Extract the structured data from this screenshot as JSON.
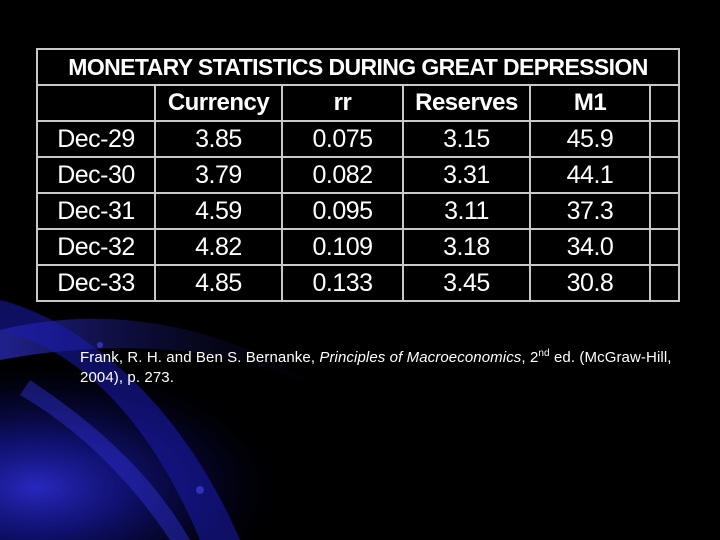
{
  "theme": {
    "background": "#000000",
    "accent": "#1a1aa8",
    "text": "#ffffff",
    "grid": "#c8c8c8"
  },
  "table": {
    "title": "MONETARY STATISTICS DURING GREAT DEPRESSION",
    "columns": [
      "",
      "Currency",
      "rr",
      "Reserves",
      "M1",
      ""
    ],
    "rows": [
      [
        "Dec-29",
        "3.85",
        "0.075",
        "3.15",
        "45.9",
        ""
      ],
      [
        "Dec-30",
        "3.79",
        "0.082",
        "3.31",
        "44.1",
        ""
      ],
      [
        "Dec-31",
        "4.59",
        "0.095",
        "3.11",
        "37.3",
        ""
      ],
      [
        "Dec-32",
        "4.82",
        "0.109",
        "3.18",
        "34.0",
        ""
      ],
      [
        "Dec-33",
        "4.85",
        "0.133",
        "3.45",
        "30.8",
        ""
      ]
    ]
  },
  "citation": {
    "prefix": "Frank, R. H. and Ben S. Bernanke, ",
    "book_title": "Principles of Macroeconomics",
    "edition_num": ", 2",
    "edition_sup": "nd",
    "suffix": " ed. (McGraw-Hill, 2004), p. 273."
  }
}
